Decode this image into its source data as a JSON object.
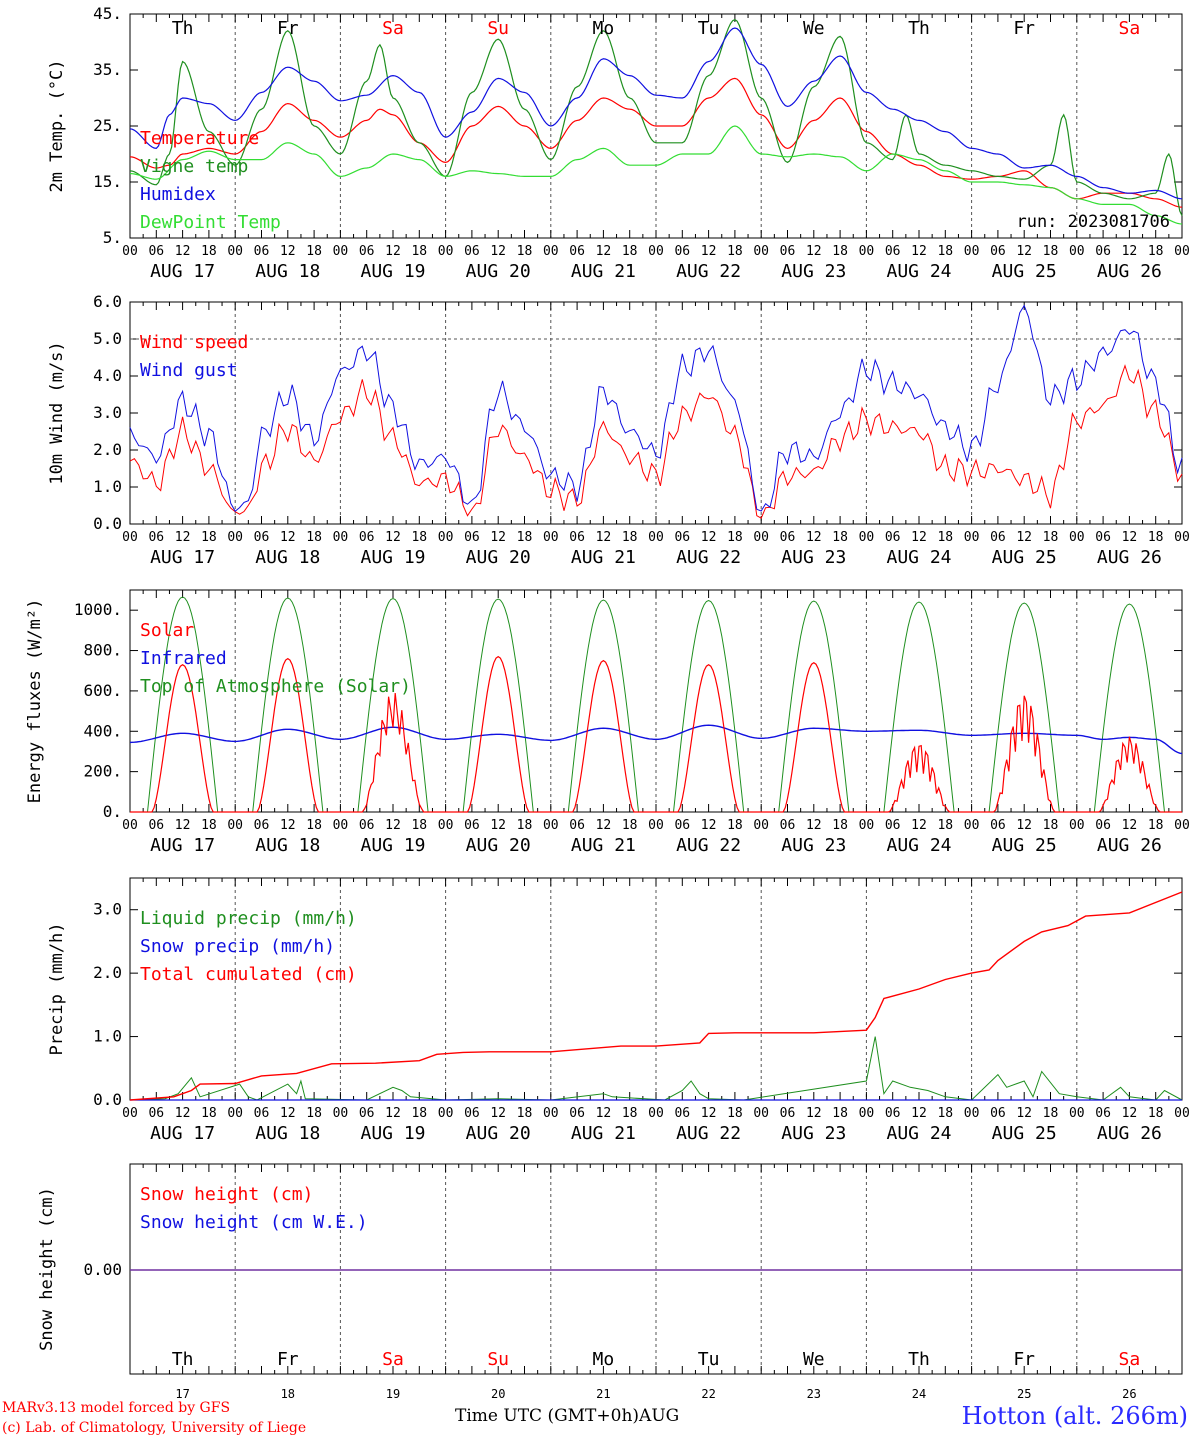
{
  "colors": {
    "red": "#ff0000",
    "green": "#1f8f1f",
    "blue": "#1010e0",
    "light_green": "#33dd33",
    "purple": "#7030a0",
    "grid": "#555555"
  },
  "days": [
    {
      "dow": "Th",
      "date": "AUG 17",
      "num": "17",
      "weekend": false
    },
    {
      "dow": "Fr",
      "date": "AUG 18",
      "num": "18",
      "weekend": false
    },
    {
      "dow": "Sa",
      "date": "AUG 19",
      "num": "19",
      "weekend": true
    },
    {
      "dow": "Su",
      "date": "AUG 20",
      "num": "20",
      "weekend": true
    },
    {
      "dow": "Mo",
      "date": "AUG 21",
      "num": "21",
      "weekend": false
    },
    {
      "dow": "Tu",
      "date": "AUG 22",
      "num": "22",
      "weekend": false
    },
    {
      "dow": "We",
      "date": "AUG 23",
      "num": "23",
      "weekend": false
    },
    {
      "dow": "Th",
      "date": "AUG 24",
      "num": "24",
      "weekend": false
    },
    {
      "dow": "Fr",
      "date": "AUG 25",
      "num": "25",
      "weekend": false
    },
    {
      "dow": "Sa",
      "date": "AUG 26",
      "num": "26",
      "weekend": true
    }
  ],
  "hour_ticks": [
    "00",
    "06",
    "12",
    "18"
  ],
  "final_tick": "00",
  "run_label": "run: 2023081706",
  "footer": {
    "credit_line1": "MARv3.13 model forced by GFS",
    "credit_line2": "(c) Lab. of Climatology, University of Liege",
    "time_axis": "Time UTC (GMT+0h)",
    "month": "AUG",
    "station": "Hotton (alt. 266m)"
  },
  "chart_data": [
    {
      "type": "line",
      "ylabel": "2m Temp. (°C)",
      "ylim": [
        5,
        45
      ],
      "yticks": [
        "5.",
        "15.",
        "25.",
        "35.",
        "45."
      ],
      "x_unit": "hours since AUG 17 00 UTC",
      "series": [
        {
          "name": "Temperature",
          "color": "red",
          "x": [
            0,
            6,
            9,
            12,
            18,
            24,
            30,
            36,
            42,
            48,
            54,
            57,
            60,
            66,
            72,
            78,
            84,
            90,
            96,
            102,
            108,
            114,
            120,
            126,
            132,
            138,
            144,
            150,
            156,
            162,
            168,
            174,
            180,
            186,
            192,
            198,
            204,
            210,
            216,
            222,
            228,
            234,
            240
          ],
          "y": [
            19.5,
            17.5,
            18,
            20,
            21,
            20,
            24,
            29,
            26,
            23,
            26,
            28,
            27,
            22,
            18.5,
            25,
            28.5,
            25,
            21,
            26,
            30,
            28,
            25,
            25,
            30,
            33.5,
            27,
            21,
            26,
            30,
            24,
            20,
            18,
            16,
            15.5,
            16,
            17,
            14,
            12,
            13,
            13,
            12,
            10.5
          ]
        },
        {
          "name": "Vigne temp",
          "color": "green",
          "x": [
            0,
            6,
            9,
            12,
            18,
            24,
            30,
            36,
            42,
            48,
            54,
            57,
            60,
            66,
            72,
            78,
            84,
            90,
            96,
            102,
            108,
            114,
            120,
            126,
            132,
            138,
            144,
            150,
            156,
            162,
            168,
            174,
            177,
            180,
            186,
            192,
            198,
            204,
            210,
            213,
            216,
            222,
            228,
            234,
            237,
            240
          ],
          "y": [
            17,
            14.5,
            20,
            36.5,
            24,
            18,
            28,
            42,
            25,
            20,
            33,
            39.5,
            30,
            22,
            16,
            31,
            40.5,
            28,
            19,
            32,
            42,
            30,
            22,
            22,
            34,
            44,
            30,
            18.5,
            32,
            41,
            22,
            19,
            27,
            20,
            18,
            17,
            16,
            15.5,
            18,
            27,
            15,
            13,
            12,
            13,
            20,
            9
          ]
        },
        {
          "name": "Humidex",
          "color": "blue",
          "x": [
            0,
            6,
            9,
            12,
            18,
            24,
            30,
            36,
            42,
            48,
            54,
            60,
            66,
            72,
            78,
            84,
            90,
            96,
            102,
            108,
            114,
            120,
            126,
            132,
            138,
            144,
            150,
            156,
            162,
            168,
            174,
            180,
            186,
            192,
            198,
            204,
            210,
            216,
            222,
            228,
            234,
            240
          ],
          "y": [
            24.5,
            21,
            27,
            30,
            29,
            26,
            31,
            35.5,
            33,
            29.5,
            30.5,
            34,
            31,
            23,
            27.5,
            33.5,
            31,
            25,
            30,
            37,
            34,
            30.5,
            30,
            36.5,
            42.5,
            36,
            28.5,
            33,
            37.5,
            31,
            28,
            26,
            24,
            21,
            20,
            17.5,
            18,
            16,
            14,
            13,
            13.5,
            12
          ]
        },
        {
          "name": "DewPoint Temp",
          "color": "light_green",
          "x": [
            0,
            6,
            12,
            18,
            24,
            30,
            36,
            42,
            48,
            54,
            60,
            66,
            72,
            78,
            84,
            90,
            96,
            102,
            108,
            114,
            120,
            126,
            132,
            138,
            144,
            150,
            156,
            162,
            168,
            174,
            180,
            186,
            192,
            198,
            204,
            210,
            216,
            222,
            228,
            234,
            240
          ],
          "y": [
            16.5,
            15.5,
            19,
            20.5,
            19,
            19,
            22,
            20,
            16,
            17.5,
            20,
            19,
            16,
            17,
            16.5,
            16,
            16,
            19,
            21,
            18,
            18,
            20,
            20,
            25,
            20,
            19.5,
            20,
            19.5,
            17,
            20,
            19,
            17,
            15,
            15,
            14.5,
            14,
            12,
            11,
            11,
            9,
            7.5
          ]
        }
      ]
    },
    {
      "type": "line",
      "ylabel": "10m Wind (m/s)",
      "ylim": [
        0,
        6
      ],
      "yticks": [
        "0.0",
        "1.0",
        "2.0",
        "3.0",
        "4.0",
        "5.0",
        "6.0"
      ],
      "x_unit": "hours since AUG 17 00 UTC",
      "series": [
        {
          "name": "Wind speed",
          "color": "red",
          "x": [
            0,
            6,
            12,
            18,
            24,
            27,
            30,
            36,
            42,
            48,
            54,
            60,
            66,
            72,
            78,
            84,
            90,
            96,
            102,
            108,
            114,
            120,
            126,
            132,
            138,
            144,
            150,
            156,
            162,
            168,
            174,
            180,
            186,
            192,
            198,
            204,
            210,
            216,
            222,
            228,
            234,
            240
          ],
          "y": [
            1.7,
            1.1,
            2.5,
            1.5,
            0.3,
            0.4,
            1.5,
            2.6,
            1.7,
            2.9,
            3.6,
            2.3,
            1.1,
            1.2,
            0.3,
            2.6,
            1.8,
            0.9,
            0.6,
            2.6,
            1.8,
            1.3,
            2.9,
            3.5,
            2.4,
            0.2,
            1.3,
            1.4,
            2.3,
            2.8,
            2.6,
            2.5,
            1.5,
            1.4,
            1.5,
            1.2,
            0.8,
            2.8,
            3.2,
            4.1,
            3.0,
            1.3
          ]
        },
        {
          "name": "Wind gust",
          "color": "blue",
          "x": [
            0,
            6,
            12,
            18,
            24,
            27,
            30,
            36,
            42,
            48,
            54,
            60,
            66,
            72,
            78,
            84,
            90,
            96,
            102,
            108,
            114,
            120,
            126,
            132,
            138,
            144,
            150,
            156,
            162,
            168,
            174,
            180,
            186,
            192,
            198,
            204,
            210,
            216,
            222,
            228,
            234,
            240
          ],
          "y": [
            2.4,
            1.8,
            3.3,
            2.4,
            0.4,
            0.6,
            2.4,
            3.5,
            2.3,
            4.1,
            4.7,
            3.1,
            1.6,
            1.8,
            0.5,
            3.6,
            2.6,
            1.3,
            1.0,
            3.6,
            2.5,
            1.9,
            4.2,
            4.7,
            3.3,
            0.3,
            2.0,
            1.8,
            3.0,
            4.2,
            3.8,
            3.5,
            2.6,
            2.0,
            3.8,
            5.8,
            3.4,
            3.9,
            4.6,
            5.3,
            3.8,
            1.5
          ]
        }
      ],
      "reference_line": 5.0
    },
    {
      "type": "line",
      "ylabel": "Energy fluxes (W/m²)",
      "ylim": [
        0,
        1100
      ],
      "yticks": [
        "0.",
        "200.",
        "400.",
        "600.",
        "800.",
        "1000."
      ],
      "x_unit": "hours since AUG 17 00 UTC",
      "solar_peaks": [
        730,
        760,
        600,
        770,
        750,
        730,
        740,
        350,
        600,
        380
      ],
      "toa_peak": [
        1065,
        1060,
        1058,
        1055,
        1050,
        1048,
        1045,
        1040,
        1035,
        1030
      ],
      "series": [
        {
          "name": "Solar",
          "color": "red"
        },
        {
          "name": "Infrared",
          "color": "blue",
          "x": [
            0,
            12,
            24,
            36,
            48,
            60,
            72,
            84,
            96,
            108,
            120,
            132,
            144,
            156,
            168,
            180,
            192,
            204,
            216,
            222,
            228,
            234,
            240
          ],
          "y": [
            345,
            390,
            350,
            410,
            360,
            420,
            360,
            385,
            355,
            415,
            360,
            430,
            365,
            415,
            400,
            405,
            380,
            390,
            380,
            360,
            370,
            360,
            290
          ]
        },
        {
          "name": "Top of Atmosphere (Solar)",
          "color": "green"
        }
      ]
    },
    {
      "type": "line",
      "ylabel": "Precip (mm/h)",
      "ylim": [
        0,
        3.5
      ],
      "yticks": [
        "0.0",
        "1.0",
        "2.0",
        "3.0"
      ],
      "x_unit": "hours since AUG 17 00 UTC",
      "series": [
        {
          "name": "Liquid precip (mm/h)",
          "color": "green",
          "x": [
            0,
            8,
            11,
            14,
            16,
            25,
            27,
            29,
            36,
            38,
            39,
            40,
            54,
            60,
            62,
            64,
            72,
            84,
            96,
            108,
            110,
            122,
            126,
            128,
            130,
            132,
            140,
            168,
            170,
            172,
            174,
            178,
            182,
            186,
            192,
            198,
            200,
            204,
            206,
            208,
            212,
            216,
            222,
            226,
            228,
            234,
            236,
            240
          ],
          "y": [
            0,
            0.02,
            0.1,
            0.35,
            0.05,
            0.25,
            0.05,
            0,
            0.25,
            0.1,
            0.3,
            0.02,
            0,
            0.2,
            0.15,
            0.05,
            0,
            0.02,
            0,
            0.1,
            0.05,
            0,
            0.15,
            0.3,
            0.1,
            0.02,
            0,
            0.3,
            1.0,
            0.1,
            0.3,
            0.2,
            0.15,
            0.05,
            0,
            0.4,
            0.2,
            0.3,
            0.05,
            0.45,
            0.1,
            0.05,
            0,
            0.2,
            0.05,
            0,
            0.15,
            0
          ]
        },
        {
          "name": "Snow precip (mm/h)",
          "color": "blue",
          "x": [
            0,
            240
          ],
          "y": [
            0,
            0
          ]
        },
        {
          "name": "Total cumulated (cm)",
          "color": "red",
          "x": [
            0,
            10,
            14,
            16,
            24,
            30,
            38,
            46,
            56,
            66,
            70,
            76,
            82,
            96,
            112,
            120,
            130,
            132,
            138,
            144,
            156,
            168,
            170,
            172,
            180,
            186,
            192,
            196,
            198,
            204,
            208,
            214,
            218,
            228,
            240
          ],
          "y": [
            0,
            0.05,
            0.15,
            0.25,
            0.26,
            0.38,
            0.42,
            0.57,
            0.58,
            0.62,
            0.72,
            0.75,
            0.76,
            0.76,
            0.85,
            0.85,
            0.9,
            1.05,
            1.06,
            1.06,
            1.06,
            1.1,
            1.3,
            1.6,
            1.75,
            1.9,
            2.0,
            2.05,
            2.2,
            2.5,
            2.65,
            2.75,
            2.9,
            2.95,
            3.28
          ]
        }
      ]
    },
    {
      "type": "line",
      "ylabel": "Snow height (cm)",
      "yticks": [
        "0.00"
      ],
      "x_unit": "hours since AUG 17 00 UTC",
      "series": [
        {
          "name": "Snow height (cm)",
          "color": "red",
          "x": [
            0,
            240
          ],
          "y": [
            0,
            0
          ]
        },
        {
          "name": "Snow height (cm W.E.)",
          "color": "blue",
          "x": [
            0,
            240
          ],
          "y": [
            0,
            0
          ]
        }
      ]
    }
  ]
}
